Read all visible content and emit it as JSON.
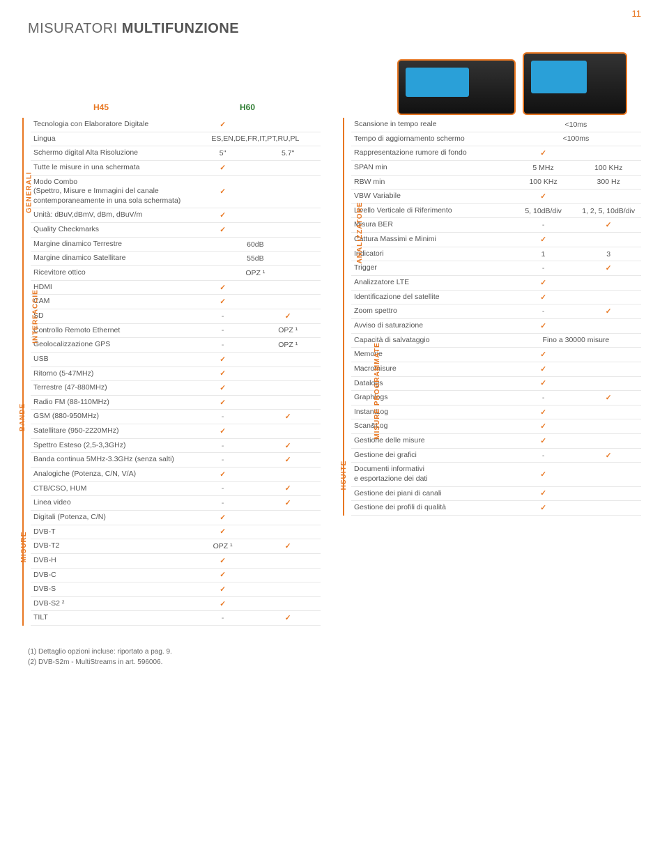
{
  "page_number": "11",
  "title_light": "MISURATORI",
  "title_bold": "MULTIFUNZIONE",
  "model_a": "H45",
  "model_b": "H60",
  "check_glyph": "✓",
  "dash_glyph": "-",
  "left": {
    "generali": {
      "tab": "GENERALI",
      "rows": [
        {
          "l": "Tecnologia con Elaboratore Digitale",
          "a": "✓",
          "b": ""
        },
        {
          "l": "Lingua",
          "a": "ES,EN,DE,FR,IT,PT,RU,PL",
          "b": "",
          "span": true
        },
        {
          "l": "Schermo digital Alta Risoluzione",
          "a": "5\"",
          "b": "5.7\""
        },
        {
          "l": "Tutte le misure in una schermata",
          "a": "✓",
          "b": ""
        },
        {
          "l": "Modo Combo\n(Spettro, Misure e Immagini del canale contemporaneamente in una sola schermata)",
          "a": "✓",
          "b": ""
        },
        {
          "l": "Unità: dBuV,dBmV, dBm, dBuV/m",
          "a": "✓",
          "b": ""
        },
        {
          "l": "Quality Checkmarks",
          "a": "✓",
          "b": ""
        },
        {
          "l": "Margine dinamico Terrestre",
          "a": "60dB",
          "b": "",
          "span": true
        },
        {
          "l": "Margine dinamico Satellitare",
          "a": "55dB",
          "b": "",
          "span": true
        }
      ]
    },
    "interfaccie": {
      "tab": "INTERFACCIE",
      "rows": [
        {
          "l": "Ricevitore ottico",
          "a": "OPZ ¹",
          "b": "",
          "span": true
        },
        {
          "l": "HDMI",
          "a": "✓",
          "b": ""
        },
        {
          "l": "CAM",
          "a": "✓",
          "b": ""
        },
        {
          "l": "SD",
          "a": "-",
          "b": "✓"
        },
        {
          "l": "Controllo Remoto Ethernet",
          "a": "-",
          "b": "OPZ ¹"
        },
        {
          "l": "Geolocalizzazione GPS",
          "a": "-",
          "b": "OPZ ¹"
        },
        {
          "l": "USB",
          "a": "✓",
          "b": ""
        }
      ]
    },
    "bande": {
      "tab": "BANDE",
      "rows": [
        {
          "l": "Ritorno (5-47MHz)",
          "a": "✓",
          "b": ""
        },
        {
          "l": "Terrestre (47-880MHz)",
          "a": "✓",
          "b": ""
        },
        {
          "l": "Radio FM (88-110MHz)",
          "a": "✓",
          "b": ""
        },
        {
          "l": "GSM (880-950MHz)",
          "a": "-",
          "b": "✓"
        },
        {
          "l": "Satellitare (950-2220MHz)",
          "a": "✓",
          "b": ""
        },
        {
          "l": "Spettro Esteso (2,5-3,3GHz)",
          "a": "-",
          "b": "✓"
        },
        {
          "l": "Banda continua 5MHz-3.3GHz (senza salti)",
          "a": "-",
          "b": "✓"
        }
      ]
    },
    "misure": {
      "tab": "MISURE",
      "rows": [
        {
          "l": "Analogiche (Potenza, C/N, V/A)",
          "a": "✓",
          "b": ""
        },
        {
          "l": "CTB/CSO, HUM",
          "a": "-",
          "b": "✓"
        },
        {
          "l": "Linea video",
          "a": "-",
          "b": "✓"
        },
        {
          "l": "Digitali (Potenza, C/N)",
          "a": "✓",
          "b": ""
        },
        {
          "l": "DVB-T",
          "a": "✓",
          "b": ""
        },
        {
          "l": "DVB-T2",
          "a": "OPZ ¹",
          "b": "✓"
        },
        {
          "l": "DVB-H",
          "a": "✓",
          "b": ""
        },
        {
          "l": "DVB-C",
          "a": "✓",
          "b": ""
        },
        {
          "l": "DVB-S",
          "a": "✓",
          "b": ""
        },
        {
          "l": "DVB-S2 ²",
          "a": "✓",
          "b": ""
        },
        {
          "l": "TILT",
          "a": "-",
          "b": "✓"
        }
      ]
    }
  },
  "right": {
    "analizzatore": {
      "tab": "ANALIZZATORE",
      "rows": [
        {
          "l": "Scansione in tempo reale",
          "a": "<10ms",
          "b": "",
          "span": true
        },
        {
          "l": "Tempo di aggiornamento schermo",
          "a": "<100ms",
          "b": "",
          "span": true
        },
        {
          "l": "Rappresentazione rumore di fondo",
          "a": "✓",
          "b": ""
        },
        {
          "l": "SPAN min",
          "a": "5 MHz",
          "b": "100 KHz"
        },
        {
          "l": "RBW min",
          "a": "100 KHz",
          "b": "300 Hz"
        },
        {
          "l": "VBW Variabile",
          "a": "✓",
          "b": ""
        },
        {
          "l": "Livello Verticale di Riferimento",
          "a": "5, 10dB/div",
          "b": "1, 2, 5, 10dB/div"
        },
        {
          "l": "Misura BER",
          "a": "-",
          "b": "✓"
        },
        {
          "l": "Cattura Massimi e Minimi",
          "a": "✓",
          "b": ""
        },
        {
          "l": "Indicatori",
          "a": "1",
          "b": "3"
        },
        {
          "l": "Trigger",
          "a": "-",
          "b": "✓"
        },
        {
          "l": "Analizzatore LTE",
          "a": "✓",
          "b": ""
        },
        {
          "l": "Identificazione del satellite",
          "a": "✓",
          "b": ""
        },
        {
          "l": "Zoom spettro",
          "a": "-",
          "b": "✓"
        },
        {
          "l": "Avviso di saturazione",
          "a": "✓",
          "b": ""
        },
        {
          "l": "Capacità di salvataggio",
          "a": "Fino a 30000 misure",
          "b": "",
          "span": true
        }
      ]
    },
    "programmate": {
      "tab": "MISURE PROGRAMMATE",
      "rows": [
        {
          "l": "Memorie",
          "a": "✓",
          "b": ""
        },
        {
          "l": "Macromisure",
          "a": "✓",
          "b": ""
        },
        {
          "l": "Datalogs",
          "a": "✓",
          "b": ""
        },
        {
          "l": "Graphlogs",
          "a": "-",
          "b": "✓"
        },
        {
          "l": "InstantLog",
          "a": "✓",
          "b": ""
        },
        {
          "l": "Scan&Log",
          "a": "✓",
          "b": ""
        }
      ]
    },
    "hsuite": {
      "tab": "HSUITE",
      "rows": [
        {
          "l": "Gestione delle misure",
          "a": "✓",
          "b": ""
        },
        {
          "l": "Gestione dei grafici",
          "a": "-",
          "b": "✓"
        },
        {
          "l": "Documenti informativi\ne esportazione dei dati",
          "a": "✓",
          "b": ""
        },
        {
          "l": "Gestione dei piani di canali",
          "a": "✓",
          "b": ""
        },
        {
          "l": "Gestione dei profili di qualità",
          "a": "✓",
          "b": ""
        }
      ]
    }
  },
  "footnotes": [
    "(1)  Dettaglio opzioni incluse: riportato a pag. 9.",
    "(2)  DVB-S2m - MultiStreams in art. 596006."
  ],
  "colors": {
    "accent": "#e87722",
    "green": "#2e7d32",
    "row_border": "#e8e8e8",
    "text": "#555555"
  }
}
